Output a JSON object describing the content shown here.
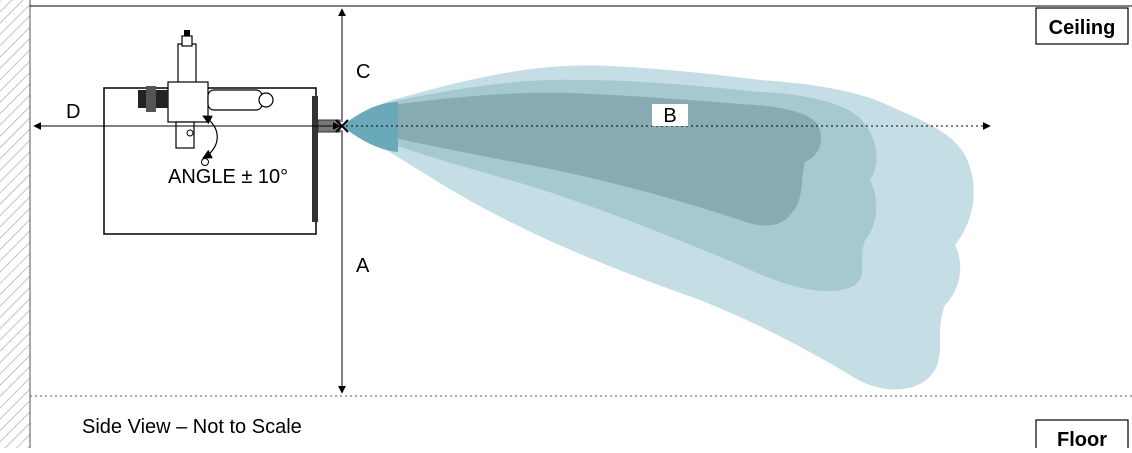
{
  "labels": {
    "ceiling": "Ceiling",
    "floor": "Floor",
    "caption": "Side View – Not to Scale",
    "angle": "ANGLE ± 10°"
  },
  "dimensions": {
    "a": "A",
    "b": "B",
    "c": "C",
    "d": "D"
  },
  "colors": {
    "plume_outer": "#c5dde4",
    "plume_mid": "#a6c8d1",
    "plume_inner": "#88aab2",
    "nozzle_tip": "#6aa9b8",
    "wall_hatch": "#b0b0b0",
    "line": "#000000"
  }
}
